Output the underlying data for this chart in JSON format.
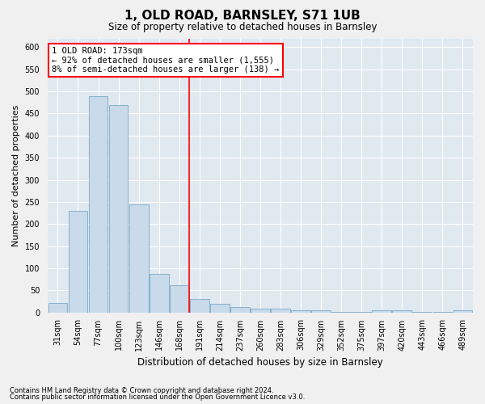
{
  "title": "1, OLD ROAD, BARNSLEY, S71 1UB",
  "subtitle": "Size of property relative to detached houses in Barnsley",
  "xlabel": "Distribution of detached houses by size in Barnsley",
  "ylabel": "Number of detached properties",
  "bar_color": "#c9daea",
  "bar_edge_color": "#7aaac8",
  "background_color": "#e0e8f0",
  "grid_color": "#ffffff",
  "fig_background": "#f0f0f0",
  "property_line_x": 173,
  "annotation_line1": "1 OLD ROAD: 173sqm",
  "annotation_line2": "← 92% of detached houses are smaller (1,555)",
  "annotation_line3": "8% of semi-detached houses are larger (138) →",
  "footnote1": "Contains HM Land Registry data © Crown copyright and database right 2024.",
  "footnote2": "Contains public sector information licensed under the Open Government Licence v3.0.",
  "bin_labels": [
    "31sqm",
    "54sqm",
    "77sqm",
    "100sqm",
    "123sqm",
    "146sqm",
    "168sqm",
    "191sqm",
    "214sqm",
    "237sqm",
    "260sqm",
    "283sqm",
    "306sqm",
    "329sqm",
    "352sqm",
    "375sqm",
    "397sqm",
    "420sqm",
    "443sqm",
    "466sqm",
    "489sqm"
  ],
  "values": [
    22,
    230,
    490,
    470,
    245,
    88,
    62,
    30,
    20,
    13,
    9,
    9,
    5,
    4,
    2,
    2,
    5,
    5,
    2,
    1,
    4
  ],
  "ylim": [
    0,
    620
  ],
  "yticks": [
    0,
    50,
    100,
    150,
    200,
    250,
    300,
    350,
    400,
    450,
    500,
    550,
    600
  ],
  "title_fontsize": 11,
  "subtitle_fontsize": 8.5,
  "ylabel_fontsize": 8,
  "xlabel_fontsize": 8.5,
  "tick_fontsize": 7,
  "annot_fontsize": 7.5,
  "footnote_fontsize": 6
}
